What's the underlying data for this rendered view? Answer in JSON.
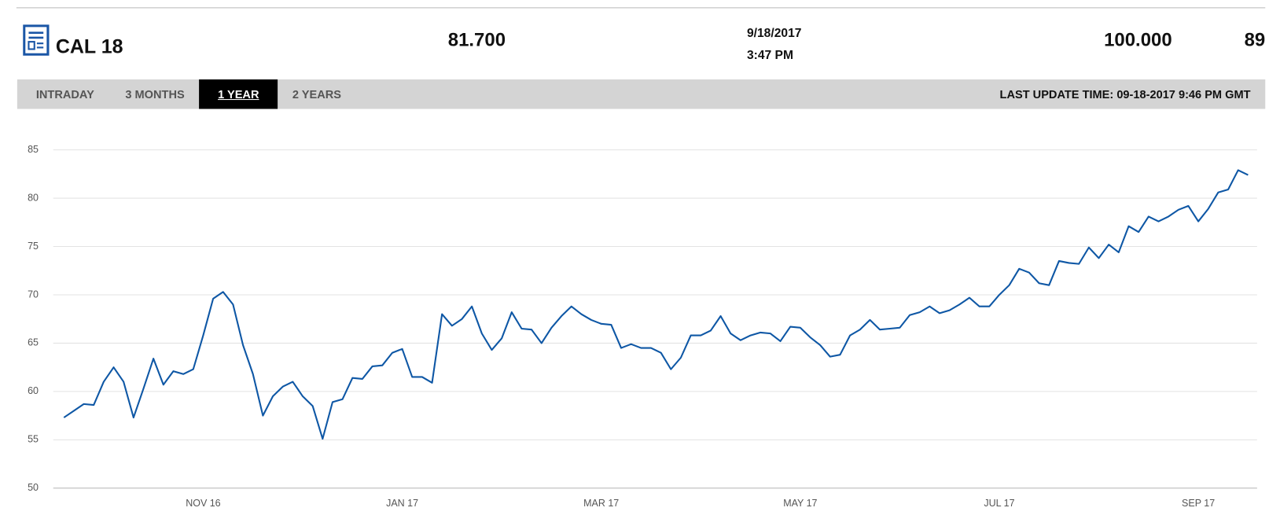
{
  "header": {
    "symbol": "CAL 18",
    "last": "81.700",
    "date": "9/18/2017",
    "time": "3:47 PM",
    "high": "100.000",
    "extra": "89"
  },
  "tabs": [
    "INTRADAY",
    "3 MONTHS",
    "1 YEAR",
    "2 YEARS"
  ],
  "active_tab": 2,
  "last_update": "LAST UPDATE TIME: 09-18-2017 9:46 PM GMT",
  "chart_data": {
    "type": "line",
    "color": "#0e57a5",
    "grid": true,
    "ylim": [
      50,
      85
    ],
    "yticks": [
      50,
      55,
      60,
      65,
      70,
      75,
      80,
      85
    ],
    "categories": [
      null,
      null,
      null,
      null,
      null,
      null,
      null,
      null,
      null,
      null,
      null,
      null,
      null,
      null,
      "NOV 16",
      null,
      null,
      null,
      null,
      null,
      null,
      null,
      null,
      null,
      null,
      null,
      null,
      null,
      null,
      null,
      null,
      null,
      null,
      null,
      "JAN 17",
      null,
      null,
      null,
      null,
      null,
      null,
      null,
      null,
      null,
      null,
      null,
      null,
      null,
      null,
      null,
      null,
      null,
      null,
      null,
      "MAR 17",
      null,
      null,
      null,
      null,
      null,
      null,
      null,
      null,
      null,
      null,
      null,
      null,
      null,
      null,
      null,
      null,
      null,
      null,
      null,
      "MAY 17",
      null,
      null,
      null,
      null,
      null,
      null,
      null,
      null,
      null,
      null,
      null,
      null,
      null,
      null,
      null,
      null,
      null,
      null,
      null,
      "JUL 17",
      null,
      null,
      null,
      null,
      null,
      null,
      null,
      null,
      null,
      null,
      null,
      null,
      null,
      null,
      null,
      null,
      null,
      null,
      null,
      "SEP 17",
      null,
      null,
      null,
      null,
      null
    ],
    "values": [
      57.3,
      58.0,
      58.7,
      58.6,
      61.0,
      62.5,
      61.0,
      57.3,
      60.3,
      63.4,
      60.7,
      62.1,
      61.8,
      62.3,
      65.8,
      69.6,
      70.3,
      69.0,
      64.8,
      61.8,
      57.5,
      59.5,
      60.5,
      61.0,
      59.5,
      58.5,
      55.1,
      58.9,
      59.2,
      61.4,
      61.3,
      62.6,
      62.7,
      64.0,
      64.4,
      61.5,
      61.5,
      60.9,
      68.0,
      66.8,
      67.5,
      68.8,
      66.0,
      64.3,
      65.5,
      68.2,
      66.5,
      66.4,
      65.0,
      66.6,
      67.8,
      68.8,
      68.0,
      67.4,
      67.0,
      66.9,
      64.5,
      64.9,
      64.5,
      64.5,
      64.0,
      62.3,
      63.5,
      65.8,
      65.8,
      66.3,
      67.8,
      66.0,
      65.3,
      65.8,
      66.1,
      66.0,
      65.2,
      66.7,
      66.6,
      65.6,
      64.8,
      63.6,
      63.8,
      65.8,
      66.4,
      67.4,
      66.4,
      66.5,
      66.6,
      67.9,
      68.2,
      68.8,
      68.1,
      68.4,
      69.0,
      69.7,
      68.8,
      68.8,
      70.0,
      71.0,
      72.7,
      72.3,
      71.2,
      71.0,
      73.5,
      73.3,
      73.2,
      74.9,
      73.8,
      75.2,
      74.4,
      77.1,
      76.5,
      78.1,
      77.6,
      78.1,
      78.8,
      79.2,
      77.6,
      78.9,
      80.6,
      80.9,
      82.9,
      82.4
    ]
  }
}
